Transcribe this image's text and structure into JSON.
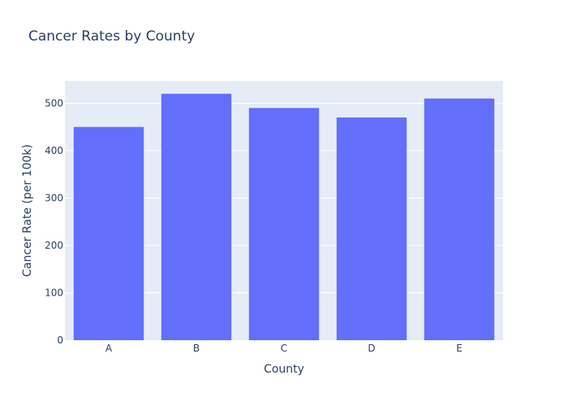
{
  "chart_data": {
    "type": "bar",
    "title": "Cancer Rates by County",
    "xlabel": "County",
    "ylabel": "Cancer Rate (per 100k)",
    "categories": [
      "A",
      "B",
      "C",
      "D",
      "E"
    ],
    "values": [
      450,
      520,
      490,
      470,
      510
    ],
    "ylim": [
      0,
      547
    ],
    "yticks": [
      0,
      100,
      200,
      300,
      400,
      500
    ],
    "grid": true,
    "colors": {
      "bar": "#636efa",
      "plot_background": "#e5ecf6",
      "grid": "#ffffff",
      "text": "#2a3f5f"
    }
  }
}
